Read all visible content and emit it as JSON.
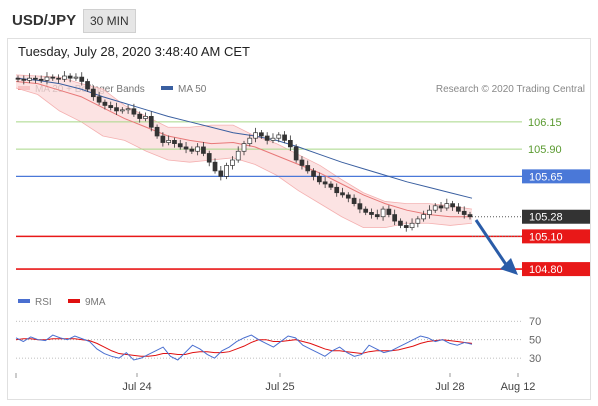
{
  "header": {
    "symbol": "USD/JPY",
    "timeframe": "30 MIN",
    "timestamp": "Tuesday, July 28, 2020 3:48:40 AM CET",
    "copyright": "Research © 2020 Trading Central"
  },
  "legend": {
    "price": [
      {
        "label": "MA 20 + Bollinger Bands",
        "color": "#f08080"
      },
      {
        "label": "MA 50",
        "color": "#3a5fa0"
      }
    ],
    "rsi": [
      {
        "label": "RSI",
        "color": "#4a6fd0"
      },
      {
        "label": "9MA",
        "color": "#e01010"
      }
    ]
  },
  "colors": {
    "resistance_green": "#a8d888",
    "pivot_blue": "#4a78d8",
    "support_red": "#e81818",
    "last_price_bg": "#333333",
    "arrow": "#2a5ca8"
  },
  "chart_data": {
    "type": "candlestick",
    "price_axis": {
      "min": 104.7,
      "max": 106.35
    },
    "x_ticks": [
      "Jul 24",
      "Jul 25",
      "Jul 28",
      "Aug 12"
    ],
    "levels": [
      {
        "label": "106.15",
        "value": 106.15,
        "kind": "resistance"
      },
      {
        "label": "105.90",
        "value": 105.9,
        "kind": "resistance"
      },
      {
        "label": "105.65",
        "value": 105.65,
        "kind": "pivot"
      },
      {
        "label": "105.28",
        "value": 105.28,
        "kind": "last"
      },
      {
        "label": "105.10",
        "value": 105.1,
        "kind": "support"
      },
      {
        "label": "104.80",
        "value": 104.8,
        "kind": "support"
      }
    ],
    "close_series": [
      106.54,
      106.53,
      106.55,
      106.54,
      106.53,
      106.56,
      106.55,
      106.54,
      106.57,
      106.55,
      106.56,
      106.52,
      106.45,
      106.38,
      106.33,
      106.3,
      106.28,
      106.25,
      106.26,
      106.27,
      106.22,
      106.18,
      106.2,
      106.1,
      106.02,
      105.96,
      105.98,
      105.95,
      105.92,
      105.9,
      105.88,
      105.92,
      105.86,
      105.78,
      105.7,
      105.65,
      105.75,
      105.8,
      105.88,
      105.95,
      106.0,
      106.05,
      106.02,
      105.98,
      106.0,
      106.03,
      105.98,
      105.92,
      105.8,
      105.75,
      105.7,
      105.65,
      105.6,
      105.58,
      105.55,
      105.5,
      105.48,
      105.45,
      105.4,
      105.35,
      105.32,
      105.3,
      105.28,
      105.35,
      105.3,
      105.24,
      105.2,
      105.18,
      105.22,
      105.26,
      105.3,
      105.34,
      105.38,
      105.36,
      105.4,
      105.37,
      105.33,
      105.3,
      105.28
    ],
    "ma20_bollinger": {
      "ma": [
        106.52,
        106.5,
        106.44,
        106.38,
        106.28,
        106.18,
        106.1,
        106.02,
        105.98,
        105.95,
        105.96,
        105.92,
        105.84,
        105.76,
        105.68,
        105.58,
        105.48,
        105.4,
        105.34,
        105.3,
        105.28,
        105.28
      ],
      "upper": [
        106.58,
        106.57,
        106.56,
        106.5,
        106.45,
        106.3,
        106.2,
        106.1,
        106.1,
        106.12,
        106.12,
        106.02,
        105.95,
        105.85,
        105.75,
        105.62,
        105.5,
        105.42,
        105.4,
        105.4,
        105.38,
        105.35
      ],
      "lower": [
        106.46,
        106.4,
        106.25,
        106.15,
        106.02,
        105.98,
        105.88,
        105.8,
        105.78,
        105.8,
        105.82,
        105.76,
        105.66,
        105.52,
        105.4,
        105.28,
        105.18,
        105.18,
        105.22,
        105.22,
        105.2,
        105.22
      ]
    },
    "ma50": [
      106.55,
      106.53,
      106.5,
      106.45,
      106.38,
      106.32,
      106.26,
      106.2,
      106.15,
      106.1,
      106.05,
      106.02,
      105.98,
      105.92,
      105.85,
      105.78,
      105.72,
      105.66,
      105.6,
      105.55,
      105.5,
      105.45
    ],
    "rsi_axis": {
      "ticks": [
        70,
        50,
        30
      ],
      "min": 15,
      "max": 80
    },
    "rsi": [
      52,
      48,
      53,
      50,
      49,
      55,
      52,
      50,
      54,
      51,
      48,
      40,
      35,
      32,
      30,
      36,
      28,
      30,
      34,
      38,
      42,
      32,
      28,
      36,
      44,
      40,
      34,
      30,
      38,
      42,
      48,
      52,
      55,
      50,
      46,
      42,
      48,
      54,
      52,
      44,
      40,
      36,
      32,
      38,
      42,
      36,
      32,
      34,
      44,
      40,
      36,
      38,
      42,
      46,
      50,
      54,
      52,
      48,
      50,
      46,
      44,
      47,
      45
    ],
    "rsi_ma": [
      50,
      51,
      51,
      50,
      50,
      51,
      51,
      51,
      51,
      50,
      49,
      46,
      42,
      38,
      35,
      34,
      33,
      32,
      32,
      33,
      35,
      35,
      34,
      34,
      36,
      37,
      37,
      36,
      36,
      37,
      40,
      43,
      47,
      50,
      50,
      48,
      48,
      49,
      50,
      48,
      46,
      43,
      40,
      38,
      38,
      37,
      36,
      35,
      37,
      38,
      38,
      38,
      39,
      41,
      43,
      46,
      48,
      49,
      50,
      49,
      48,
      47,
      46
    ]
  }
}
